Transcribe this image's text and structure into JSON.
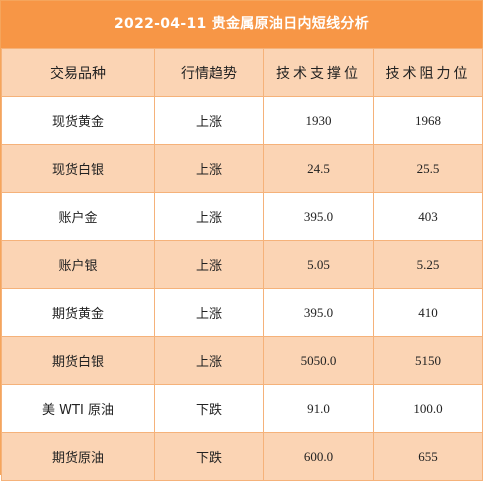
{
  "title": "2022-04-11 贵金属原油日内短线分析",
  "headers": {
    "product": "交易品种",
    "trend": "行情趋势",
    "support": "技术支撑位",
    "resistance": "技术阻力位"
  },
  "rows": [
    {
      "product": "现货黄金",
      "trend": "上涨",
      "support": "1930",
      "resistance": "1968"
    },
    {
      "product": "现货白银",
      "trend": "上涨",
      "support": "24.5",
      "resistance": "25.5"
    },
    {
      "product": "账户金",
      "trend": "上涨",
      "support": "395.0",
      "resistance": "403"
    },
    {
      "product": "账户银",
      "trend": "上涨",
      "support": "5.05",
      "resistance": "5.25"
    },
    {
      "product": "期货黄金",
      "trend": "上涨",
      "support": "395.0",
      "resistance": "410"
    },
    {
      "product": "期货白银",
      "trend": "上涨",
      "support": "5050.0",
      "resistance": "5150"
    },
    {
      "product": "美 WTI 原油",
      "trend": "下跌",
      "support": "91.0",
      "resistance": "100.0"
    },
    {
      "product": "期货原油",
      "trend": "下跌",
      "support": "600.0",
      "resistance": "655"
    }
  ],
  "colors": {
    "title_bg": "#f79646",
    "row_alt_bg": "#fbd4b4",
    "border": "#f5b27a"
  }
}
